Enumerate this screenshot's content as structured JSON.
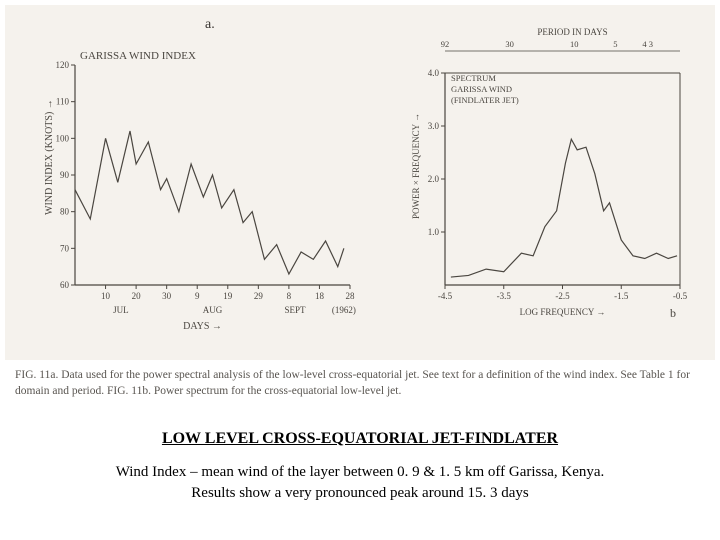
{
  "panel_a": {
    "type": "line",
    "marker_label": "a.",
    "title": "GARISSA WIND INDEX",
    "ylabel": "WIND INDEX (KNOTS) →",
    "xlabel": "DAYS →",
    "x_ticks": [
      10,
      20,
      30,
      9,
      19,
      29,
      8,
      18,
      28
    ],
    "x_tick_labels": [
      "10",
      "20",
      "30",
      "9",
      "19",
      "29",
      "8",
      "18",
      "28"
    ],
    "x_month_labels": [
      "JUL",
      "AUG",
      "SEPT",
      "(1962)"
    ],
    "ylim": [
      60,
      120
    ],
    "ytick_step": 10,
    "line_color": "#4a4640",
    "axis_color": "#4a4640",
    "background_color": "#f5f2ed",
    "label_fontsize": 10,
    "tick_fontsize": 9,
    "line_width": 1.2,
    "data": [
      [
        0,
        86
      ],
      [
        5,
        78
      ],
      [
        10,
        100
      ],
      [
        14,
        88
      ],
      [
        18,
        102
      ],
      [
        20,
        93
      ],
      [
        24,
        99
      ],
      [
        28,
        86
      ],
      [
        30,
        89
      ],
      [
        34,
        80
      ],
      [
        38,
        93
      ],
      [
        42,
        84
      ],
      [
        45,
        90
      ],
      [
        48,
        81
      ],
      [
        52,
        86
      ],
      [
        55,
        77
      ],
      [
        58,
        80
      ],
      [
        62,
        67
      ],
      [
        66,
        71
      ],
      [
        70,
        63
      ],
      [
        74,
        69
      ],
      [
        78,
        67
      ],
      [
        82,
        72
      ],
      [
        86,
        65
      ],
      [
        88,
        70
      ]
    ]
  },
  "panel_b": {
    "type": "line",
    "marker_label": "b",
    "header_top": "PERIOD IN DAYS",
    "header_scale_labels": [
      "92",
      "30",
      "10",
      "5",
      "4 3"
    ],
    "inset_lines": [
      "SPECTRUM",
      "GARISSA WIND",
      "(FINDLATER JET)"
    ],
    "ylabel": "POWER × FREQUENCY →",
    "xlabel": "LOG FREQUENCY →",
    "xlim": [
      -4.5,
      -0.5
    ],
    "x_ticks": [
      -4.5,
      -3.5,
      -2.5,
      -1.5,
      -0.5
    ],
    "ylim": [
      0,
      4.0
    ],
    "y_ticks": [
      1.0,
      2.0,
      3.0,
      4.0
    ],
    "line_color": "#4a4640",
    "axis_color": "#4a4640",
    "background_color": "#f5f2ed",
    "label_fontsize": 9,
    "tick_fontsize": 9,
    "line_width": 1.2,
    "data": [
      [
        -4.4,
        0.15
      ],
      [
        -4.1,
        0.18
      ],
      [
        -3.8,
        0.3
      ],
      [
        -3.5,
        0.25
      ],
      [
        -3.2,
        0.6
      ],
      [
        -3.0,
        0.55
      ],
      [
        -2.8,
        1.1
      ],
      [
        -2.6,
        1.4
      ],
      [
        -2.45,
        2.3
      ],
      [
        -2.35,
        2.75
      ],
      [
        -2.25,
        2.55
      ],
      [
        -2.1,
        2.6
      ],
      [
        -1.95,
        2.1
      ],
      [
        -1.8,
        1.4
      ],
      [
        -1.7,
        1.55
      ],
      [
        -1.5,
        0.85
      ],
      [
        -1.3,
        0.55
      ],
      [
        -1.1,
        0.5
      ],
      [
        -0.9,
        0.6
      ],
      [
        -0.7,
        0.5
      ],
      [
        -0.55,
        0.55
      ]
    ]
  },
  "caption": "FIG. 11a. Data used for the power spectral analysis of the low-level cross-equatorial jet. See text for a definition of the wind index. See Table 1 for domain and period. FIG. 11b. Power spectrum for the cross-equatorial low-level jet.",
  "title": "LOW LEVEL CROSS-EQUATORIAL JET-FINDLATER",
  "subtitle_line1": "Wind Index – mean wind of the layer between 0. 9 & 1. 5 km off Garissa, Kenya.",
  "subtitle_line2": "Results show a very pronounced peak around 15. 3 days"
}
